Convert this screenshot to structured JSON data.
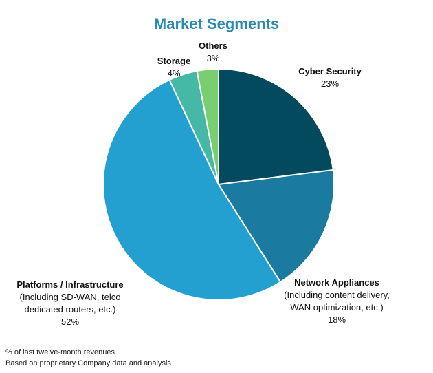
{
  "chart_data": {
    "type": "pie",
    "title": "Market Segments",
    "slices": [
      {
        "label": "Cyber Security",
        "desc": [],
        "value": 23,
        "pct_label": "23%",
        "color": "#044a5e"
      },
      {
        "label": "Network Appliances",
        "desc": [
          "(Including content delivery,",
          "WAN optimization, etc.)"
        ],
        "value": 18,
        "pct_label": "18%",
        "color": "#1a7aa0"
      },
      {
        "label": "Platforms / Infrastructure",
        "desc": [
          "(Including SD-WAN, telco",
          "dedicated routers, etc.)"
        ],
        "value": 52,
        "pct_label": "52%",
        "color": "#23a0d0"
      },
      {
        "label": "Storage",
        "desc": [],
        "value": 4,
        "pct_label": "4%",
        "color": "#46b8a6"
      },
      {
        "label": "Others",
        "desc": [],
        "value": 3,
        "pct_label": "3%",
        "color": "#79cf6f"
      }
    ],
    "footnotes": [
      "% of last twelve-month revenues",
      "Based on proprietary Company data and analysis"
    ]
  }
}
